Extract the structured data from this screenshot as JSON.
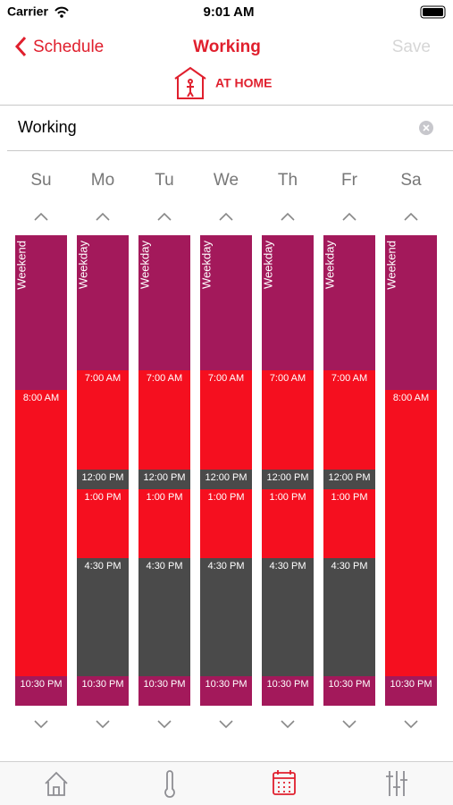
{
  "status_bar": {
    "carrier": "Carrier",
    "time": "9:01 AM"
  },
  "nav": {
    "back": "Schedule",
    "title": "Working",
    "action": "Save"
  },
  "mode": "AT HOME",
  "name_field": "Working",
  "days": [
    {
      "day": "Su",
      "segments": [
        {
          "label": "Weekend",
          "color": "#a3195b"
        },
        {
          "label": "8:00 AM",
          "color": "#f50f1f"
        },
        {
          "label": "10:30 PM",
          "color": "#a3195b"
        }
      ]
    },
    {
      "day": "Mo",
      "segments": [
        {
          "label": "Weekday",
          "color": "#a3195b"
        },
        {
          "label": "7:00 AM",
          "color": "#f50f1f"
        },
        {
          "label": "12:00 PM",
          "color": "#4a4a4a"
        },
        {
          "label": "1:00 PM",
          "color": "#f50f1f"
        },
        {
          "label": "4:30 PM",
          "color": "#4a4a4a"
        },
        {
          "label": "10:30 PM",
          "color": "#a3195b"
        }
      ]
    },
    {
      "day": "Tu",
      "segments": [
        {
          "label": "Weekday",
          "color": "#a3195b"
        },
        {
          "label": "7:00 AM",
          "color": "#f50f1f"
        },
        {
          "label": "12:00 PM",
          "color": "#4a4a4a"
        },
        {
          "label": "1:00 PM",
          "color": "#f50f1f"
        },
        {
          "label": "4:30 PM",
          "color": "#4a4a4a"
        },
        {
          "label": "10:30 PM",
          "color": "#a3195b"
        }
      ]
    },
    {
      "day": "We",
      "segments": [
        {
          "label": "Weekday",
          "color": "#a3195b"
        },
        {
          "label": "7:00 AM",
          "color": "#f50f1f"
        },
        {
          "label": "12:00 PM",
          "color": "#4a4a4a"
        },
        {
          "label": "1:00 PM",
          "color": "#f50f1f"
        },
        {
          "label": "4:30 PM",
          "color": "#4a4a4a"
        },
        {
          "label": "10:30 PM",
          "color": "#a3195b"
        }
      ]
    },
    {
      "day": "Th",
      "segments": [
        {
          "label": "Weekday",
          "color": "#a3195b"
        },
        {
          "label": "7:00 AM",
          "color": "#f50f1f"
        },
        {
          "label": "12:00 PM",
          "color": "#4a4a4a"
        },
        {
          "label": "1:00 PM",
          "color": "#f50f1f"
        },
        {
          "label": "4:30 PM",
          "color": "#4a4a4a"
        },
        {
          "label": "10:30 PM",
          "color": "#a3195b"
        }
      ]
    },
    {
      "day": "Fr",
      "segments": [
        {
          "label": "Weekday",
          "color": "#a3195b"
        },
        {
          "label": "7:00 AM",
          "color": "#f50f1f"
        },
        {
          "label": "12:00 PM",
          "color": "#4a4a4a"
        },
        {
          "label": "1:00 PM",
          "color": "#f50f1f"
        },
        {
          "label": "4:30 PM",
          "color": "#4a4a4a"
        },
        {
          "label": "10:30 PM",
          "color": "#a3195b"
        }
      ]
    },
    {
      "day": "Sa",
      "segments": [
        {
          "label": "Weekend",
          "color": "#a3195b"
        },
        {
          "label": "8:00 AM",
          "color": "#f50f1f"
        },
        {
          "label": "10:30 PM",
          "color": "#a3195b"
        }
      ]
    }
  ]
}
